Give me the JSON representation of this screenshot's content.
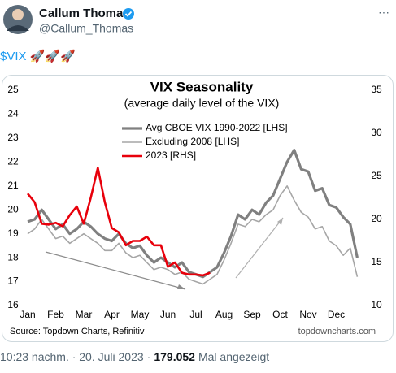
{
  "tweet": {
    "name": "Callum Thomas",
    "handle": "@Callum_Thomas",
    "more": "···",
    "cashtag": "$VIX",
    "text_rest": " 🚀🚀🚀",
    "timestamp": "10:23 nachm. · 20. Juli 2023",
    "separator": "·",
    "views": "179.052",
    "views_label": "Mal angezeigt"
  },
  "chart_data": {
    "type": "line",
    "title": "VIX Seasonality",
    "subtitle": "(average daily level of the VIX)",
    "source": "Source: Topdown Charts, Refinitiv",
    "watermark": "topdowncharts.com",
    "xlim": [
      1,
      12.9
    ],
    "xticks": [
      {
        "value": 1,
        "label": "Jan"
      },
      {
        "value": 2,
        "label": "Feb"
      },
      {
        "value": 3,
        "label": "Mar"
      },
      {
        "value": 4,
        "label": "Apr"
      },
      {
        "value": 5,
        "label": "May"
      },
      {
        "value": 6,
        "label": "Jun"
      },
      {
        "value": 7,
        "label": "Jul"
      },
      {
        "value": 8,
        "label": "Aug"
      },
      {
        "value": 9,
        "label": "Sep"
      },
      {
        "value": 10,
        "label": "Oct"
      },
      {
        "value": 11,
        "label": "Nov"
      },
      {
        "value": 12,
        "label": "Dec"
      }
    ],
    "ylim": [
      16,
      25
    ],
    "yticks": [
      16,
      17,
      18,
      19,
      20,
      21,
      22,
      23,
      24,
      25
    ],
    "y2lim": [
      10,
      35
    ],
    "y2ticks": [
      10,
      15,
      20,
      25,
      30,
      35
    ],
    "series": [
      {
        "name": "Avg CBOE VIX 1990-2022 [LHS]",
        "color": "#808080",
        "x": [
          1,
          1.25,
          1.5,
          1.75,
          2,
          2.25,
          2.5,
          2.75,
          3,
          3.25,
          3.5,
          3.75,
          4,
          4.25,
          4.5,
          4.75,
          5,
          5.25,
          5.5,
          5.75,
          6,
          6.25,
          6.5,
          6.75,
          7,
          7.25,
          7.5,
          7.75,
          8,
          8.25,
          8.5,
          8.75,
          9,
          9.25,
          9.5,
          9.75,
          10,
          10.25,
          10.5,
          10.75,
          11,
          11.25,
          11.5,
          11.75,
          12,
          12.25,
          12.5,
          12.75
        ],
        "values": [
          19.5,
          19.6,
          20.0,
          19.6,
          19.2,
          19.4,
          19.0,
          19.2,
          19.5,
          19.3,
          19.0,
          18.8,
          18.7,
          19.0,
          18.6,
          18.4,
          18.5,
          18.1,
          17.8,
          18.0,
          17.8,
          17.6,
          17.8,
          17.4,
          17.3,
          17.2,
          17.4,
          17.6,
          18.2,
          18.9,
          19.8,
          19.6,
          20.0,
          19.8,
          20.3,
          20.6,
          21.3,
          22.0,
          22.5,
          21.7,
          21.6,
          20.8,
          20.9,
          20.2,
          20.1,
          19.7,
          19.4,
          18.0
        ]
      },
      {
        "name": "Excluding 2008 [LHS]",
        "color": "#a6a6a6",
        "x": [
          1,
          1.25,
          1.5,
          1.75,
          2,
          2.25,
          2.5,
          2.75,
          3,
          3.25,
          3.5,
          3.75,
          4,
          4.25,
          4.5,
          4.75,
          5,
          5.25,
          5.5,
          5.75,
          6,
          6.25,
          6.5,
          6.75,
          7,
          7.25,
          7.5,
          7.75,
          8,
          8.25,
          8.5,
          8.75,
          9,
          9.25,
          9.5,
          9.75,
          10,
          10.25,
          10.5,
          10.75,
          11,
          11.25,
          11.5,
          11.75,
          12,
          12.25,
          12.5,
          12.75
        ],
        "values": [
          19.0,
          19.2,
          19.6,
          19.2,
          18.8,
          18.9,
          18.6,
          18.8,
          19.0,
          18.8,
          18.6,
          18.3,
          18.3,
          18.6,
          18.2,
          18.0,
          18.1,
          17.8,
          17.5,
          17.6,
          17.5,
          17.3,
          17.4,
          17.1,
          17.0,
          16.9,
          17.1,
          17.3,
          17.9,
          18.6,
          19.4,
          19.3,
          19.6,
          19.5,
          19.8,
          20.0,
          20.6,
          21.0,
          20.4,
          19.9,
          19.7,
          19.2,
          19.3,
          18.7,
          18.5,
          18.1,
          18.4,
          17.2
        ]
      },
      {
        "name": "2023 [RHS]",
        "color": "#e8000b",
        "axis": "y2",
        "x": [
          1,
          1.25,
          1.5,
          1.75,
          2,
          2.25,
          2.5,
          2.75,
          3,
          3.25,
          3.5,
          3.75,
          4,
          4.25,
          4.5,
          4.75,
          5,
          5.25,
          5.5,
          5.75,
          6,
          6.25,
          6.5,
          6.75,
          7,
          7.25,
          7.5
        ],
        "values": [
          23.0,
          22.0,
          19.5,
          19.4,
          19.6,
          19.2,
          20.5,
          21.5,
          19.5,
          22.5,
          26.0,
          22.0,
          19.0,
          18.5,
          17.0,
          17.5,
          17.5,
          18.0,
          17.0,
          17.0,
          14.5,
          15.0,
          13.8,
          13.6,
          13.6,
          13.5,
          13.8
        ]
      }
    ]
  }
}
